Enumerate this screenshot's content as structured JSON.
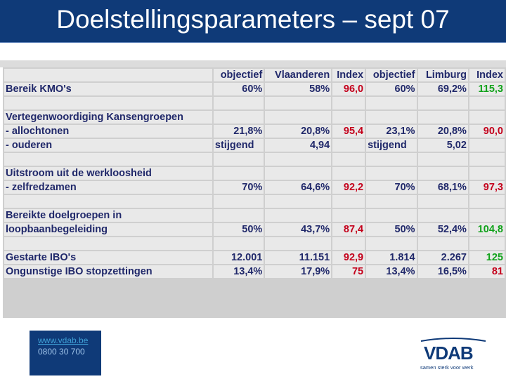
{
  "title": "Doelstellingsparameters – sept 07",
  "table": {
    "header": [
      "",
      "objectief",
      "Vlaanderen",
      "Index",
      "objectief",
      "Limburg",
      "Index"
    ],
    "rows": {
      "bereik": [
        "Bereik KMO's",
        "60%",
        "58%",
        "96,0",
        "60%",
        "69,2%",
        "115,3"
      ],
      "vert": [
        "Vertegenwoordiging Kansengroepen",
        "",
        "",
        "",
        "",
        "",
        ""
      ],
      "allo": [
        " - allochtonen",
        "21,8%",
        "20,8%",
        "95,4",
        "23,1%",
        "20,8%",
        "90,0"
      ],
      "oud": [
        " - ouderen",
        "stijgend",
        "4,94",
        "",
        "stijgend",
        "5,02",
        ""
      ],
      "uit": [
        "Uitstroom uit de werkloosheid",
        "",
        "",
        "",
        "",
        "",
        ""
      ],
      "zelf": [
        " - zelfredzamen",
        "70%",
        "64,6%",
        "92,2",
        "70%",
        "68,1%",
        "97,3"
      ],
      "ber1": [
        "Bereikte doelgroepen in",
        "",
        "",
        "",
        "",
        "",
        ""
      ],
      "ber2": [
        "loopbaanbegeleiding",
        "50%",
        "43,7%",
        "87,4",
        "50%",
        "52,4%",
        "104,8"
      ],
      "ibo": [
        "Gestarte IBO's",
        "12.001",
        "11.151",
        "92,9",
        "1.814",
        "2.267",
        "125"
      ],
      "ong": [
        "Ongunstige IBO stopzettingen",
        "13,4%",
        "17,9%",
        "75",
        "13,4%",
        "16,5%",
        "81"
      ]
    }
  },
  "footer": {
    "url": "www.vdab.be",
    "phone": "0800 30 700"
  },
  "logo": {
    "word": "VDAB",
    "tagline": "samen sterk voor werk"
  },
  "colors": {
    "title_bg": "#0f3a78",
    "text": "#20286a",
    "index_red": "#c4001b",
    "index_green": "#10a21a"
  }
}
